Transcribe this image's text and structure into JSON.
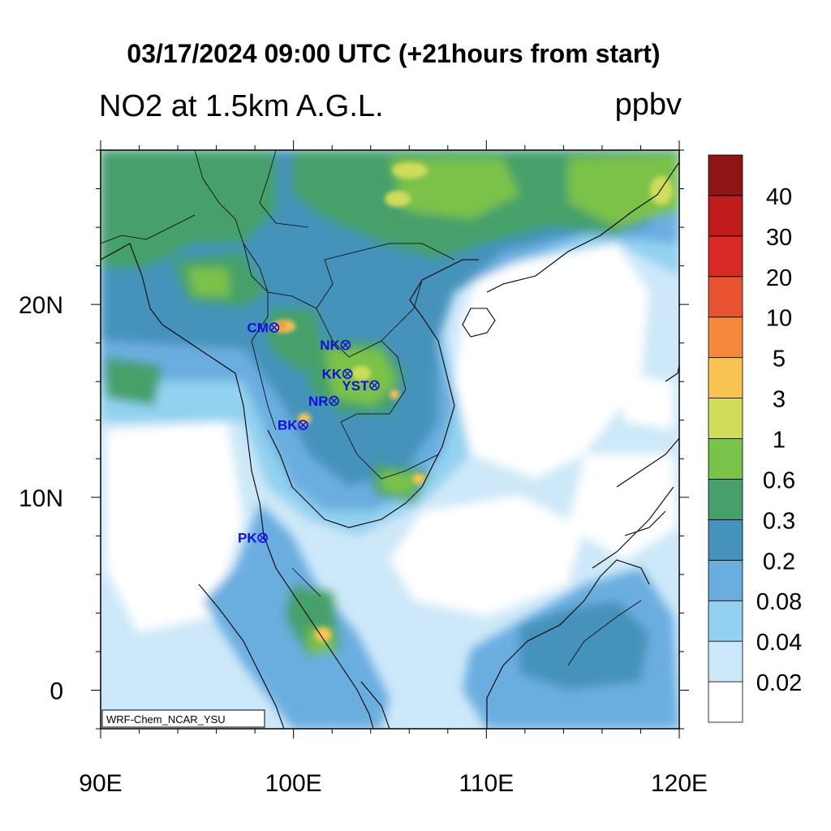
{
  "title": "03/17/2024 09:00 UTC (+21hours from start)",
  "left_title": "NO2 at 1.5km A.G.L.",
  "right_title": "ppbv",
  "credit": "WRF-Chem_NCAR_YSU",
  "map": {
    "lon_range": [
      90,
      120
    ],
    "lat_range": [
      -2,
      28
    ],
    "x_ticks": [
      {
        "lon": 90,
        "label": "90E"
      },
      {
        "lon": 100,
        "label": "100E"
      },
      {
        "lon": 110,
        "label": "110E"
      },
      {
        "lon": 120,
        "label": "120E"
      }
    ],
    "y_ticks": [
      {
        "lat": 0,
        "label": "0"
      },
      {
        "lat": 10,
        "label": "10N"
      },
      {
        "lat": 20,
        "label": "20N"
      }
    ]
  },
  "colorbar": {
    "labels": [
      "0.02",
      "0.04",
      "0.08",
      "0.2",
      "0.3",
      "0.6",
      "1",
      "3",
      "5",
      "10",
      "20",
      "30",
      "40"
    ],
    "colors": [
      "#ffffff",
      "#cde8f8",
      "#93d1f0",
      "#6aaee0",
      "#4593bb",
      "#45a06a",
      "#7bc24a",
      "#cfdd5a",
      "#f9c452",
      "#f5883a",
      "#e95332",
      "#d92a26",
      "#c01c1c",
      "#8e1416"
    ]
  },
  "sites": [
    {
      "code": "CM",
      "lon": 99.0,
      "lat": 18.8
    },
    {
      "code": "NK",
      "lon": 102.7,
      "lat": 17.9
    },
    {
      "code": "KK",
      "lon": 102.8,
      "lat": 16.4
    },
    {
      "code": "YST",
      "lon": 104.2,
      "lat": 15.8
    },
    {
      "code": "NR",
      "lon": 102.1,
      "lat": 15.0
    },
    {
      "code": "BK",
      "lon": 100.5,
      "lat": 13.75
    },
    {
      "code": "PK",
      "lon": 98.4,
      "lat": 7.9
    }
  ]
}
